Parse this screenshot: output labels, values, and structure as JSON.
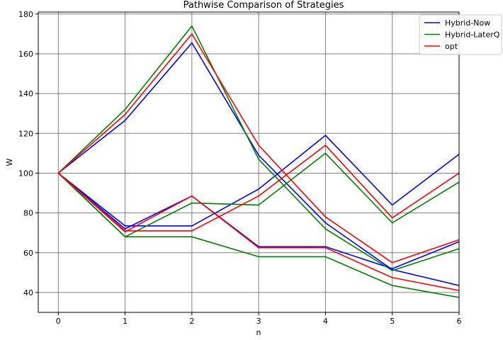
{
  "chart_data": {
    "type": "line",
    "title": "Pathwise Comparison of Strategies",
    "xlabel": "n",
    "ylabel": "W",
    "xlim": [
      -0.3,
      6
    ],
    "ylim": [
      30,
      181
    ],
    "xticks": [
      0,
      1,
      2,
      3,
      4,
      5,
      6
    ],
    "yticks": [
      40,
      60,
      80,
      100,
      120,
      140,
      160,
      180
    ],
    "grid": true,
    "legend_position": "top-right",
    "legend": [
      {
        "label": "Hybrid-Now",
        "color": "#0000ff"
      },
      {
        "label": "Hybrid-LaterQ",
        "color": "#008000"
      },
      {
        "label": "opt",
        "color": "#ff0000"
      }
    ],
    "series": [
      {
        "legend_index": 0,
        "color": "#0000ff",
        "x": [
          0,
          1,
          2,
          3,
          4,
          5,
          6
        ],
        "y": [
          100,
          126.5,
          165.5,
          109,
          75,
          51.5,
          43.5
        ]
      },
      {
        "legend_index": 0,
        "color": "#0000ff",
        "x": [
          0,
          1,
          2,
          3,
          4,
          5,
          6
        ],
        "y": [
          100,
          73.5,
          73.5,
          92,
          119,
          84,
          109.5
        ]
      },
      {
        "legend_index": 0,
        "color": "#0000ff",
        "x": [
          0,
          1,
          2,
          3,
          4,
          5,
          6
        ],
        "y": [
          100,
          72,
          88.5,
          63,
          63,
          52,
          65.5
        ]
      },
      {
        "legend_index": 1,
        "color": "#008000",
        "x": [
          0,
          1,
          2,
          3,
          4,
          5,
          6
        ],
        "y": [
          100,
          132,
          174,
          107,
          72,
          51,
          62
        ]
      },
      {
        "legend_index": 1,
        "color": "#008000",
        "x": [
          0,
          1,
          2,
          3,
          4,
          5,
          6
        ],
        "y": [
          100,
          68,
          85,
          84,
          110,
          75,
          95.5
        ]
      },
      {
        "legend_index": 1,
        "color": "#008000",
        "x": [
          0,
          1,
          2,
          3,
          4,
          5,
          6
        ],
        "y": [
          100,
          68,
          68,
          58,
          58,
          43.5,
          37.5
        ]
      },
      {
        "legend_index": 2,
        "color": "#ff0000",
        "x": [
          0,
          1,
          2,
          3,
          4,
          5,
          6
        ],
        "y": [
          100,
          129.5,
          170,
          114,
          78,
          55,
          66.5
        ]
      },
      {
        "legend_index": 2,
        "color": "#ff0000",
        "x": [
          0,
          1,
          2,
          3,
          4,
          5,
          6
        ],
        "y": [
          100,
          71,
          71,
          88.5,
          114,
          77.5,
          100
        ]
      },
      {
        "legend_index": 2,
        "color": "#ff0000",
        "x": [
          0,
          1,
          2,
          3,
          4,
          5,
          6
        ],
        "y": [
          100,
          70.5,
          88.5,
          62.5,
          62.5,
          47.5,
          41
        ]
      }
    ]
  }
}
